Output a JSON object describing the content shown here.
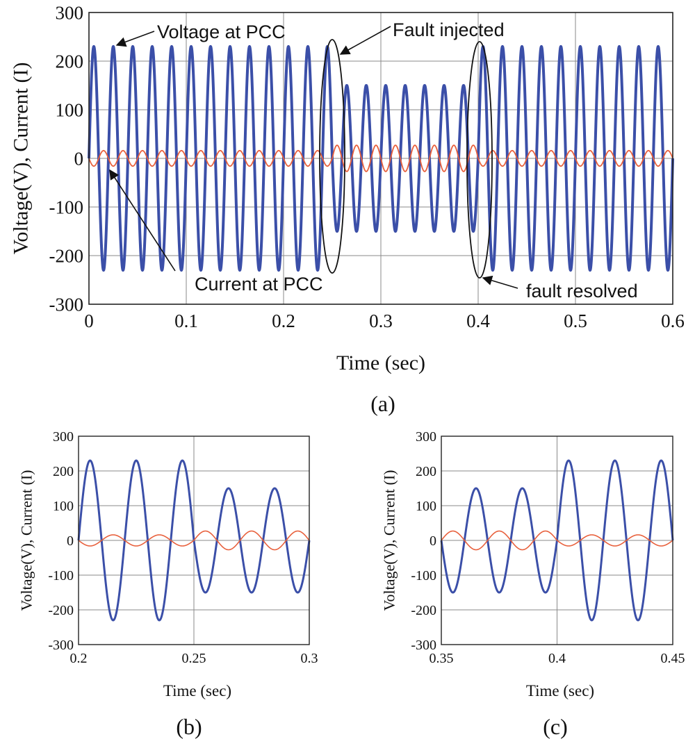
{
  "figure": {
    "panel_labels": [
      "(a)",
      "(b)",
      "(c)"
    ]
  },
  "colors": {
    "voltage": "#3b4fa8",
    "current": "#e8603c",
    "grid": "#8a8a8a",
    "axes": "#222222",
    "annotation": "#111111"
  },
  "chart_data": [
    {
      "id": "a",
      "type": "line",
      "title": "",
      "xlabel": "Time (sec)",
      "ylabel": "Voltage(V), Current (I)",
      "xlim": [
        0,
        0.6
      ],
      "ylim": [
        -300,
        300
      ],
      "xticks": [
        0,
        0.1,
        0.2,
        0.3,
        0.4,
        0.5,
        0.6
      ],
      "xtick_labels": [
        "0",
        "0.1",
        "0.2",
        "0.3",
        "0.4",
        "0.5",
        "0.6"
      ],
      "yticks": [
        300,
        200,
        100,
        0,
        -100,
        -200,
        -300
      ],
      "ytick_labels": [
        "300",
        "200",
        "100",
        "0",
        "-100",
        "-200",
        "-300"
      ],
      "grid": true,
      "frequency_hz": 50,
      "fault_window": [
        0.25,
        0.4
      ],
      "series": [
        {
          "name": "Voltage at PCC",
          "amplitude_normal": 230,
          "amplitude_fault": 150,
          "phase_rad": 0
        },
        {
          "name": "Current at PCC",
          "amplitude_normal": 16,
          "amplitude_fault": 27,
          "phase_rad": 3.14159
        }
      ],
      "annotations": [
        {
          "text": "Voltage at PCC"
        },
        {
          "text": "Fault injected"
        },
        {
          "text": "Current at PCC"
        },
        {
          "text": "fault resolved"
        }
      ]
    },
    {
      "id": "b",
      "type": "line",
      "xlabel": "Time (sec)",
      "ylabel": "Voltage(V), Current (I)",
      "xlim": [
        0.2,
        0.3
      ],
      "ylim": [
        -300,
        300
      ],
      "xticks": [
        0.2,
        0.25,
        0.3
      ],
      "xtick_labels": [
        "0.2",
        "0.25",
        "0.3"
      ],
      "yticks": [
        300,
        200,
        100,
        0,
        -100,
        -200,
        -300
      ],
      "ytick_labels": [
        "300",
        "200",
        "100",
        "0",
        "-100",
        "-200",
        "-300"
      ],
      "grid": true
    },
    {
      "id": "c",
      "type": "line",
      "xlabel": "Time (sec)",
      "ylabel": "Voltage(V), Current (I)",
      "xlim": [
        0.35,
        0.45
      ],
      "ylim": [
        -300,
        300
      ],
      "xticks": [
        0.35,
        0.4,
        0.45
      ],
      "xtick_labels": [
        "0.35",
        "0.4",
        "0.45"
      ],
      "yticks": [
        300,
        200,
        100,
        0,
        -100,
        -200,
        -300
      ],
      "ytick_labels": [
        "300",
        "200",
        "100",
        "0",
        "-100",
        "-200",
        "-300"
      ],
      "grid": true
    }
  ]
}
